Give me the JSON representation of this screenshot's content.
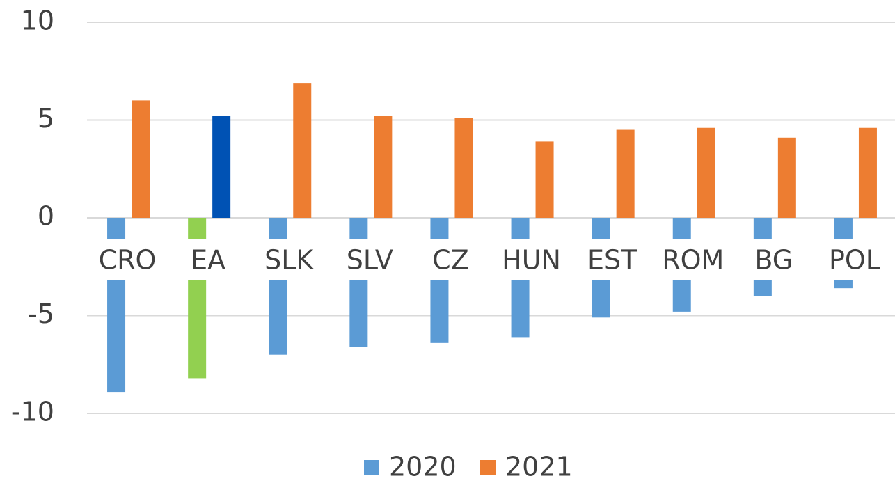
{
  "chart_data": {
    "type": "bar",
    "categories": [
      "CRO",
      "EA",
      "SLK",
      "SLV",
      "CZ",
      "HUN",
      "EST",
      "ROM",
      "BG",
      "POL"
    ],
    "series": [
      {
        "name": "2020",
        "color": "#5b9bd5",
        "colors": [
          "#5b9bd5",
          "#92d050",
          "#5b9bd5",
          "#5b9bd5",
          "#5b9bd5",
          "#5b9bd5",
          "#5b9bd5",
          "#5b9bd5",
          "#5b9bd5",
          "#5b9bd5"
        ],
        "values": [
          -8.9,
          -8.2,
          -7.0,
          -6.6,
          -6.4,
          -6.1,
          -5.1,
          -4.8,
          -4.0,
          -3.6
        ]
      },
      {
        "name": "2021",
        "color": "#ed7d31",
        "colors": [
          "#ed7d31",
          "#0052b4",
          "#ed7d31",
          "#ed7d31",
          "#ed7d31",
          "#ed7d31",
          "#ed7d31",
          "#ed7d31",
          "#ed7d31",
          "#ed7d31"
        ],
        "values": [
          6.0,
          5.2,
          6.9,
          5.2,
          5.1,
          3.9,
          4.5,
          4.6,
          4.1,
          4.6
        ]
      }
    ],
    "ylim": [
      -10,
      10
    ],
    "yticks": [
      -10,
      -5,
      0,
      5,
      10
    ],
    "grid": true,
    "legend": "bottom"
  }
}
